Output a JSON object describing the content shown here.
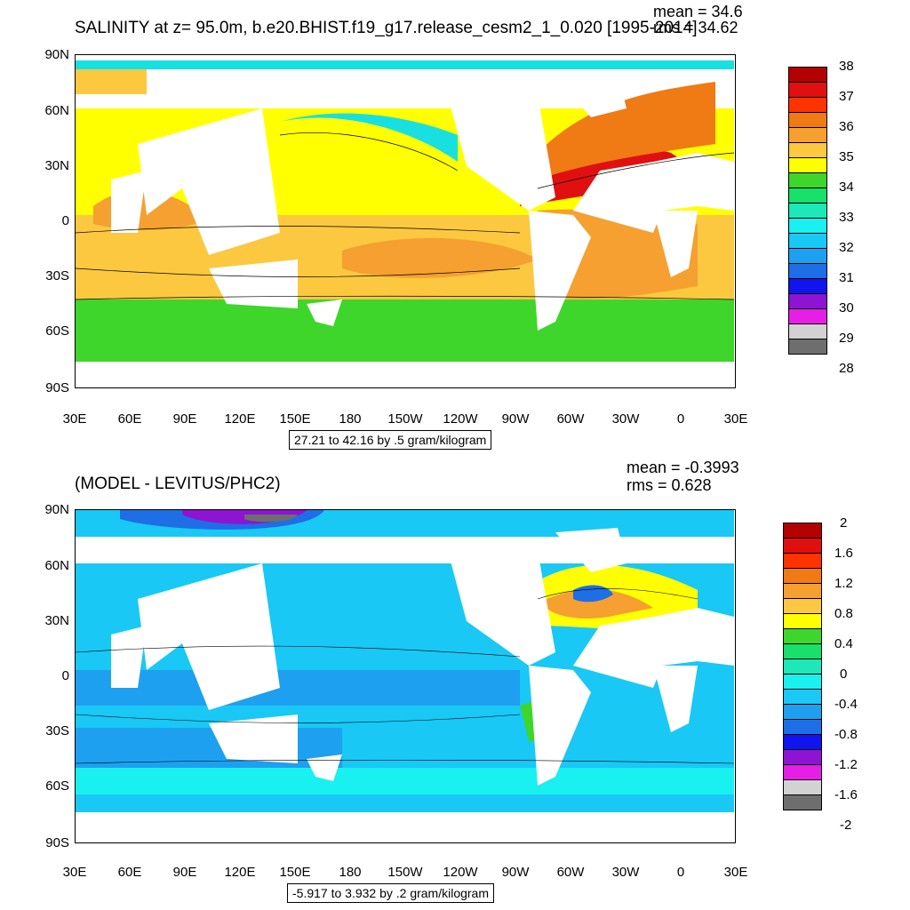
{
  "panels": [
    {
      "id": "top",
      "title": "SALINITY at z=  95.0m, b.e20.BHIST.f19_g17.release_cesm2_1_0.020 [1995-2014]",
      "stats": [
        "mean = 34.6",
        "rms = 34.62"
      ],
      "info": "27.21 to 42.16 by .5 gram/kilogram",
      "lat_labels": [
        "90N",
        "60N",
        "30N",
        "0",
        "30S",
        "60S",
        "90S"
      ],
      "lon_labels": [
        "30E",
        "60E",
        "90E",
        "120E",
        "150E",
        "180",
        "150W",
        "120W",
        "90W",
        "60W",
        "30W",
        "0",
        "30E"
      ],
      "colorbar": {
        "labels": [
          "38",
          "37",
          "36",
          "35",
          "34",
          "33",
          "32",
          "31",
          "30",
          "29",
          "28"
        ],
        "colors": [
          "#b40000",
          "#e01010",
          "#ff3300",
          "#f07a14",
          "#f5a030",
          "#fbc840",
          "#ffff00",
          "#3ed62a",
          "#18e06a",
          "#1ee8b8",
          "#19f0f0",
          "#19c8f5",
          "#1ea0f0",
          "#1e6ee6",
          "#1014ee",
          "#8c14d2",
          "#e61ee6",
          "#d2d2d2",
          "#6e6e6e"
        ]
      }
    },
    {
      "id": "bottom",
      "title": "(MODEL - LEVITUS/PHC2)",
      "stats": [
        "mean = -0.3993",
        "rms = 0.628"
      ],
      "info": "-5.917 to 3.932 by .2 gram/kilogram",
      "lat_labels": [
        "90N",
        "60N",
        "30N",
        "0",
        "30S",
        "60S",
        "90S"
      ],
      "lon_labels": [
        "30E",
        "60E",
        "90E",
        "120E",
        "150E",
        "180",
        "150W",
        "120W",
        "90W",
        "60W",
        "30W",
        "0",
        "30E"
      ],
      "colorbar": {
        "labels": [
          "2",
          "1.6",
          "1.2",
          "0.8",
          "0.4",
          "0",
          "-0.4",
          "-0.8",
          "-1.2",
          "-1.6",
          "-2"
        ],
        "colors": [
          "#b40000",
          "#e01010",
          "#ff3300",
          "#f07a14",
          "#f5a030",
          "#fbc840",
          "#ffff00",
          "#3ed62a",
          "#18e06a",
          "#1ee8b8",
          "#19f0f0",
          "#19c8f5",
          "#1ea0f0",
          "#1e6ee6",
          "#1014ee",
          "#8c14d2",
          "#e61ee6",
          "#d2d2d2",
          "#6e6e6e"
        ]
      }
    }
  ]
}
